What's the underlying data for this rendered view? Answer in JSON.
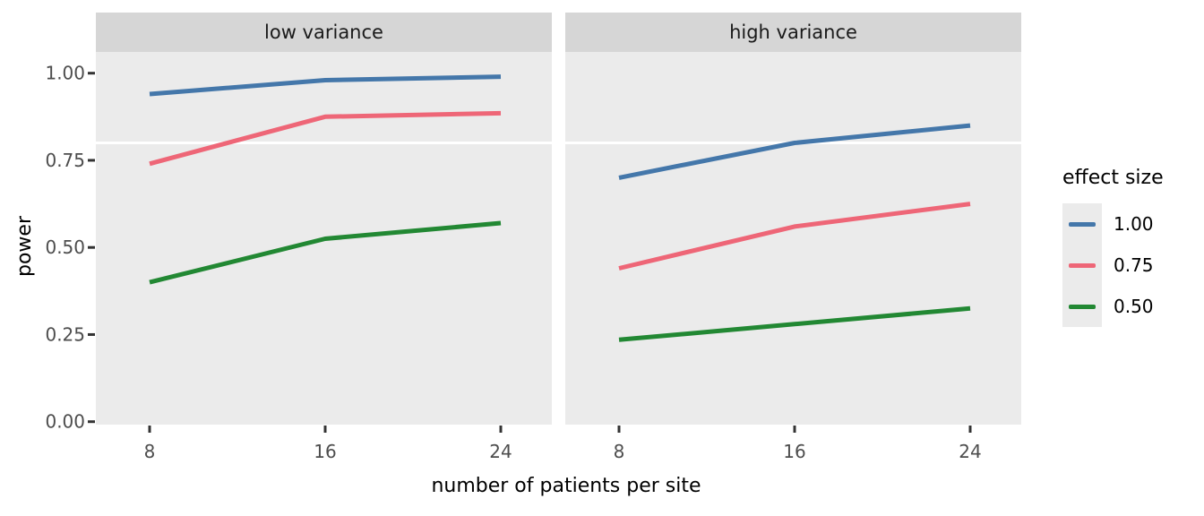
{
  "chart_data": {
    "type": "line",
    "title": "",
    "xlabel": "number of patients per site",
    "ylabel": "power",
    "x": [
      8,
      16,
      24
    ],
    "x_tick_labels": [
      "8",
      "16",
      "24"
    ],
    "y_tick_values": [
      1.0,
      0.75,
      0.5,
      0.25,
      0.0
    ],
    "y_tick_labels": [
      "1.00",
      "0.75",
      "0.50",
      "0.25",
      "0.00"
    ],
    "ylim": [
      0,
      1.065
    ],
    "grid": "off",
    "reference_line": {
      "y": 0.8,
      "color": "#FFFFFF"
    },
    "legend": {
      "title": "effect size",
      "position": "right",
      "entries": [
        {
          "label": "1.00",
          "color": "#4477AA"
        },
        {
          "label": "0.75",
          "color": "#EE6677"
        },
        {
          "label": "0.50",
          "color": "#228833"
        }
      ]
    },
    "facets": [
      {
        "label": "low variance",
        "series": [
          {
            "name": "1.00",
            "color": "#4477AA",
            "values": [
              0.94,
              0.98,
              0.99
            ]
          },
          {
            "name": "0.75",
            "color": "#EE6677",
            "values": [
              0.74,
              0.875,
              0.885
            ]
          },
          {
            "name": "0.50",
            "color": "#228833",
            "values": [
              0.4,
              0.525,
              0.57
            ]
          }
        ]
      },
      {
        "label": "high variance",
        "series": [
          {
            "name": "1.00",
            "color": "#4477AA",
            "values": [
              0.7,
              0.8,
              0.85
            ]
          },
          {
            "name": "0.75",
            "color": "#EE6677",
            "values": [
              0.44,
              0.56,
              0.625
            ]
          },
          {
            "name": "0.50",
            "color": "#228833",
            "values": [
              0.235,
              0.28,
              0.325
            ]
          }
        ]
      }
    ],
    "theme": {
      "panel_bg": "#EBEBEB",
      "strip_bg": "#D6D6D6",
      "strip_text": "#1A1A1A",
      "tick_color": "#333333",
      "tick_label_color": "#4D4D4D",
      "axis_title_color": "#000000"
    }
  }
}
